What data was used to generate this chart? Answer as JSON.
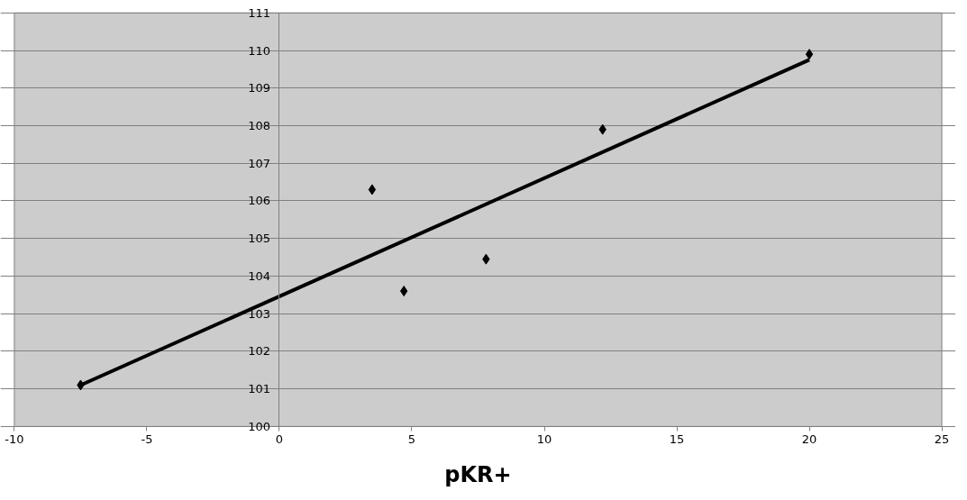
{
  "chart_data": {
    "type": "scatter",
    "xlabel": "pKR+",
    "xlim": [
      -10,
      25
    ],
    "xticks": [
      -10,
      -5,
      0,
      5,
      10,
      15,
      20,
      25
    ],
    "ylim": [
      100,
      111
    ],
    "yticks": [
      100,
      101,
      102,
      103,
      104,
      105,
      106,
      107,
      108,
      109,
      110,
      111
    ],
    "grid": "y",
    "marker": "diamond",
    "series": [
      {
        "color": "#000000",
        "x": [
          -7.5,
          3.5,
          4.7,
          7.8,
          12.2,
          20
        ],
        "values": [
          101.1,
          106.3,
          103.6,
          104.45,
          107.9,
          109.9
        ]
      },
      {
        "type": "line",
        "color": "#000000",
        "line_style": "solid",
        "marker": "none",
        "x": [
          -7.5,
          20
        ],
        "values": [
          101.1,
          109.75
        ]
      }
    ]
  }
}
